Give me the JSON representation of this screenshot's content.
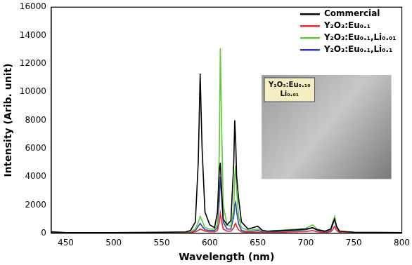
{
  "chart_data": {
    "type": "line",
    "x_label": "Wavelength (nm)",
    "y_label": "Intensity (Arib. unit)",
    "annotation": "Y₂O₃:Eu₀.₁₀ Li₀.₀₁",
    "x": [
      435,
      450,
      500,
      550,
      575,
      580,
      585,
      588,
      590,
      592,
      595,
      600,
      605,
      608,
      610,
      611,
      612,
      614,
      618,
      622,
      625,
      626,
      627,
      628,
      630,
      633,
      640,
      650,
      655,
      660,
      690,
      700,
      707,
      712,
      720,
      726,
      728,
      730,
      732,
      735,
      750,
      800
    ],
    "series": [
      {
        "name": "Commercial",
        "color": "#000000",
        "values": [
          100,
          50,
          50,
          80,
          100,
          200,
          800,
          5000,
          11300,
          6000,
          1500,
          600,
          400,
          1500,
          4500,
          5000,
          3500,
          1000,
          600,
          900,
          5000,
          8000,
          6500,
          4000,
          2500,
          800,
          300,
          500,
          200,
          150,
          250,
          300,
          400,
          250,
          150,
          300,
          700,
          1000,
          500,
          150,
          80,
          50
        ]
      },
      {
        "name": "Y₂O₃:Eu₀.₁",
        "color": "#e8262b",
        "values": [
          60,
          30,
          30,
          30,
          40,
          50,
          100,
          200,
          300,
          250,
          150,
          100,
          100,
          200,
          800,
          1400,
          1000,
          300,
          150,
          150,
          400,
          600,
          700,
          500,
          250,
          100,
          60,
          80,
          50,
          40,
          100,
          120,
          200,
          100,
          60,
          100,
          250,
          500,
          200,
          60,
          40,
          30
        ]
      },
      {
        "name": "Y₂O₃:Eu₀.₁,Li₀.₀₁",
        "color": "#5dc83a",
        "values": [
          100,
          50,
          50,
          50,
          80,
          100,
          300,
          800,
          1200,
          900,
          400,
          300,
          300,
          600,
          6000,
          13100,
          9000,
          2000,
          600,
          500,
          1800,
          4000,
          4800,
          3000,
          1200,
          400,
          200,
          300,
          200,
          150,
          300,
          350,
          600,
          300,
          150,
          300,
          800,
          1200,
          500,
          150,
          80,
          50
        ]
      },
      {
        "name": "Y₂O₃:Eu₀.₁,Li₀.₁",
        "color": "#2b3fae",
        "values": [
          80,
          40,
          40,
          40,
          60,
          80,
          200,
          500,
          700,
          500,
          250,
          200,
          200,
          400,
          2500,
          4000,
          3000,
          800,
          300,
          300,
          1200,
          2000,
          2200,
          1500,
          700,
          200,
          100,
          200,
          100,
          80,
          200,
          250,
          400,
          200,
          100,
          200,
          600,
          1000,
          400,
          100,
          50,
          40
        ]
      }
    ],
    "xlim": [
      435,
      800
    ],
    "xticks": [
      450,
      500,
      550,
      600,
      650,
      700,
      750,
      800
    ],
    "ylim": [
      0,
      16000
    ],
    "yticks": [
      0,
      2000,
      4000,
      6000,
      8000,
      10000,
      12000,
      14000,
      16000
    ],
    "grid": false,
    "legend": "upper right"
  }
}
